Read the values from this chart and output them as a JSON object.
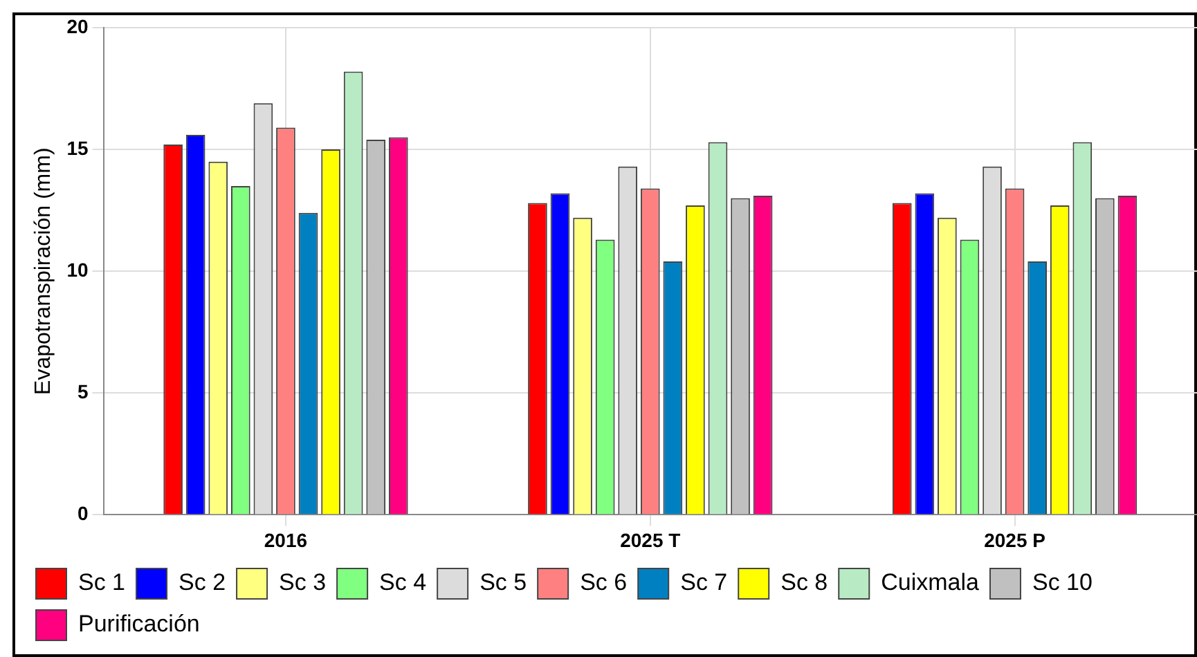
{
  "chart_data": {
    "type": "bar",
    "ylabel": "Evapotranspiración (mm)",
    "categories": [
      "2016",
      "2025 T",
      "2025 P"
    ],
    "series": [
      {
        "name": "Sc 1",
        "color": "#ff0000",
        "values": [
          15.2,
          12.8,
          12.8
        ]
      },
      {
        "name": "Sc 2",
        "color": "#0000ff",
        "values": [
          15.6,
          13.2,
          13.2
        ]
      },
      {
        "name": "Sc 3",
        "color": "#ffff80",
        "values": [
          14.5,
          12.2,
          12.2
        ]
      },
      {
        "name": "Sc 4",
        "color": "#80ff80",
        "values": [
          13.5,
          11.3,
          11.3
        ]
      },
      {
        "name": "Sc 5",
        "color": "#dcdcdc",
        "values": [
          16.9,
          14.3,
          14.3
        ]
      },
      {
        "name": "Sc 6",
        "color": "#ff8080",
        "values": [
          15.9,
          13.4,
          13.4
        ]
      },
      {
        "name": "Sc 7",
        "color": "#0080c0",
        "values": [
          12.4,
          10.4,
          10.4
        ]
      },
      {
        "name": "Sc 8",
        "color": "#ffff00",
        "values": [
          15.0,
          12.7,
          12.7
        ]
      },
      {
        "name": "Cuixmala",
        "color": "#b8ebc4",
        "values": [
          18.2,
          15.3,
          15.3
        ]
      },
      {
        "name": "Sc 10",
        "color": "#c0c0c0",
        "values": [
          15.4,
          13.0,
          13.0
        ]
      },
      {
        "name": "Purificación",
        "color": "#ff0080",
        "values": [
          15.5,
          13.1,
          13.1
        ]
      }
    ],
    "ylim": [
      0,
      20
    ],
    "yticks": [
      0,
      5,
      10,
      15,
      20
    ],
    "grid": true,
    "legend": "bottom"
  }
}
